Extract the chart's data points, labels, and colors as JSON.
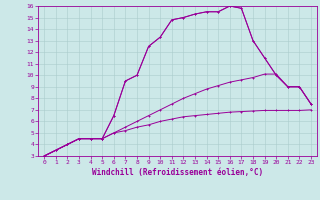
{
  "xlabel": "Windchill (Refroidissement éolien,°C)",
  "bg_color": "#cce8e8",
  "line_color": "#990099",
  "grid_color": "#aacccc",
  "xticks": [
    0,
    1,
    2,
    3,
    4,
    5,
    6,
    7,
    8,
    9,
    10,
    11,
    12,
    13,
    14,
    15,
    16,
    17,
    18,
    19,
    20,
    21,
    22,
    23
  ],
  "yticks": [
    3,
    4,
    5,
    6,
    7,
    8,
    9,
    10,
    11,
    12,
    13,
    14,
    15,
    16
  ],
  "xlim": [
    -0.5,
    23.5
  ],
  "ylim": [
    3,
    16
  ],
  "tick_fontsize": 4.5,
  "label_fontsize": 5.5,
  "line1_x": [
    0,
    1,
    2,
    3,
    4,
    5,
    6,
    7,
    8,
    9,
    10,
    11,
    12,
    13,
    14,
    15,
    16,
    17,
    18,
    19,
    20,
    21,
    22,
    23
  ],
  "line1_y": [
    3,
    3.5,
    4.0,
    4.5,
    4.5,
    4.5,
    6.5,
    9.5,
    10.0,
    12.5,
    13.3,
    14.8,
    15.0,
    15.3,
    15.5,
    15.5,
    16.0,
    15.8,
    13.0,
    11.5,
    10.0,
    9.0,
    9.0,
    7.5
  ],
  "line2_x": [
    0,
    1,
    2,
    3,
    4,
    5,
    6,
    7,
    8,
    9,
    10,
    11,
    12,
    13,
    14,
    15,
    16,
    17,
    18,
    19,
    20,
    21,
    22,
    23
  ],
  "line2_y": [
    3,
    3.5,
    4.0,
    4.5,
    4.5,
    4.5,
    5.0,
    5.5,
    6.0,
    6.5,
    7.0,
    7.5,
    8.0,
    8.4,
    8.8,
    9.1,
    9.4,
    9.6,
    9.8,
    10.1,
    10.1,
    9.0,
    9.0,
    7.5
  ],
  "line3_x": [
    0,
    1,
    2,
    3,
    4,
    5,
    6,
    7,
    8,
    9,
    10,
    11,
    12,
    13,
    14,
    15,
    16,
    17,
    18,
    19,
    20,
    21,
    22,
    23
  ],
  "line3_y": [
    3,
    3.5,
    4.0,
    4.5,
    4.5,
    4.5,
    5.0,
    5.2,
    5.5,
    5.7,
    6.0,
    6.2,
    6.4,
    6.5,
    6.6,
    6.7,
    6.8,
    6.85,
    6.9,
    6.95,
    6.95,
    6.95,
    6.95,
    7.0
  ],
  "line4_x": [
    0,
    2,
    3,
    4,
    5,
    6,
    7,
    8,
    9,
    10,
    11,
    12,
    13,
    14,
    15,
    16,
    17,
    18,
    19,
    20,
    21,
    22,
    23
  ],
  "line4_y": [
    3,
    4.0,
    4.5,
    4.5,
    4.5,
    6.5,
    9.5,
    10.0,
    12.5,
    13.3,
    14.8,
    15.0,
    15.3,
    15.5,
    15.5,
    16.0,
    15.8,
    13.0,
    11.5,
    10.0,
    9.0,
    9.0,
    7.5
  ]
}
